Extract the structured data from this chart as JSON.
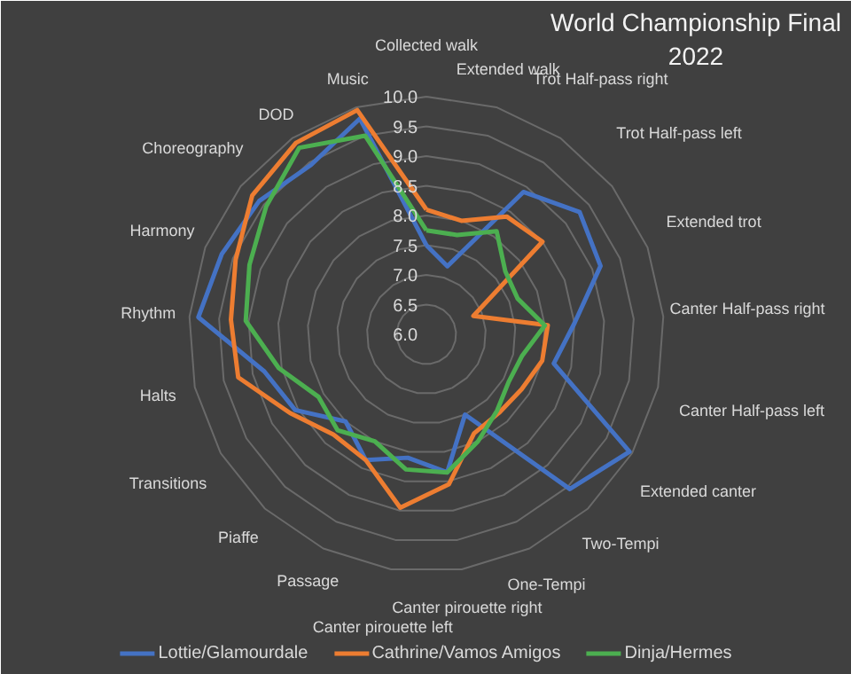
{
  "chart_data": {
    "type": "radar",
    "title": "World Championship Final\n2022",
    "categories": [
      "Collected walk",
      "Extended walk",
      "Trot Half-pass right",
      "Trot Half-pass left",
      "Extended trot",
      "Canter Half-pass right",
      "Canter Half-pass left",
      "Extended canter",
      "Two-Tempi",
      "One-Tempi",
      "Canter pirouette right",
      "Canter pirouette left",
      "Passage",
      "Piaffe",
      "Transitions",
      "Halts",
      "Rhythm",
      "Harmony",
      "Choreography",
      "DOD",
      "Music"
    ],
    "series": [
      {
        "name": "Lottie/Glamourdale",
        "color": "#4472c4",
        "values": [
          7.5,
          7.2,
          8.9,
          9.3,
          9.15,
          8.5,
          8.2,
          9.95,
          9.55,
          7.5,
          8.35,
          8.1,
          8.35,
          8.0,
          8.55,
          8.8,
          9.85,
          9.7,
          9.6,
          9.45,
          9.8
        ]
      },
      {
        "name": "Cathrine/Vamos Amigos",
        "color": "#ed7d31",
        "values": [
          8.1,
          8.0,
          8.4,
          8.5,
          6.85,
          8.05,
          8.0,
          7.85,
          7.8,
          7.85,
          8.55,
          8.95,
          8.35,
          8.3,
          8.65,
          9.25,
          9.3,
          9.45,
          9.75,
          9.9,
          9.95
        ]
      },
      {
        "name": "Dinja/Hermes",
        "color": "#4caf50",
        "values": [
          7.75,
          7.75,
          8.1,
          7.7,
          7.65,
          8.0,
          7.65,
          7.6,
          7.75,
          8.0,
          8.35,
          8.3,
          8.0,
          8.2,
          8.1,
          8.55,
          9.05,
          9.2,
          9.45,
          9.8,
          9.5
        ]
      }
    ],
    "ylim": [
      6.0,
      10.0
    ],
    "yticks": [
      {
        "value": 6.0,
        "label": "6.0"
      },
      {
        "value": 6.5,
        "label": "6.5"
      },
      {
        "value": 7.0,
        "label": "7.0"
      },
      {
        "value": 7.5,
        "label": "7.5"
      },
      {
        "value": 8.0,
        "label": "8.0"
      },
      {
        "value": 8.5,
        "label": "8.5"
      },
      {
        "value": 9.0,
        "label": "9.0"
      },
      {
        "value": 9.5,
        "label": "9.5"
      },
      {
        "value": 10.0,
        "label": "10.0"
      }
    ],
    "grid": true,
    "legend": "bottom",
    "line_style": "solid",
    "marker": "none"
  }
}
